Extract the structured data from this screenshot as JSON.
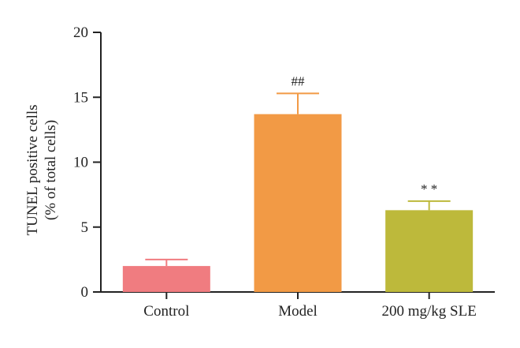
{
  "chart_data": {
    "type": "bar",
    "categories": [
      "Control",
      "Model",
      "200 mg/kg SLE"
    ],
    "values": [
      2.0,
      13.7,
      6.3
    ],
    "errors": [
      0.5,
      1.6,
      0.7
    ],
    "colors": [
      "#f07c80",
      "#f29a45",
      "#bdb93b"
    ],
    "annotations": [
      "",
      "##",
      "* *"
    ],
    "ylabel_lines": [
      "TUNEL positive cells",
      "(% of total cells)"
    ],
    "ylim": [
      0,
      20
    ],
    "yticks": [
      0,
      5,
      10,
      15,
      20
    ],
    "grid": false,
    "axis_color": "#222222"
  }
}
